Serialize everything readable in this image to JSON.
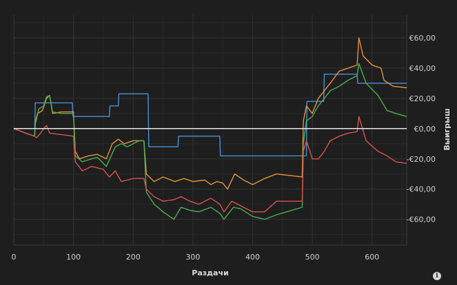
{
  "chart_data": {
    "type": "line",
    "title": "",
    "xlabel": "Раздачи",
    "ylabel": "Выигрыш",
    "xlim": [
      0,
      658
    ],
    "ylim": [
      -77,
      75
    ],
    "x_ticks": [
      0,
      100,
      200,
      300,
      400,
      500,
      600
    ],
    "y_ticks": [
      60,
      40,
      20,
      0,
      -20,
      -40,
      -60
    ],
    "y_tick_labels": [
      "€60,00",
      "€40,00",
      "€20,00",
      "€0,00",
      "-€20,00",
      "-€40,00",
      "-€60,00"
    ],
    "grid": true,
    "legend": "none",
    "zero_line": true,
    "series": [
      {
        "color": "#4a90d9",
        "points": [
          [
            0,
            0
          ],
          [
            35,
            0
          ],
          [
            36,
            17
          ],
          [
            98,
            17
          ],
          [
            99,
            8
          ],
          [
            160,
            8
          ],
          [
            161,
            15
          ],
          [
            175,
            15
          ],
          [
            176,
            23
          ],
          [
            225,
            23
          ],
          [
            226,
            -12
          ],
          [
            275,
            -12
          ],
          [
            276,
            -5
          ],
          [
            345,
            -5
          ],
          [
            346,
            -18
          ],
          [
            490,
            -18
          ],
          [
            491,
            18
          ],
          [
            518,
            18
          ],
          [
            519,
            18
          ],
          [
            520,
            36
          ],
          [
            575,
            36
          ],
          [
            576,
            30
          ],
          [
            658,
            30
          ]
        ]
      },
      {
        "color": "#e8943a",
        "points": [
          [
            0,
            0
          ],
          [
            20,
            -3
          ],
          [
            35,
            -5
          ],
          [
            36,
            3
          ],
          [
            40,
            10
          ],
          [
            48,
            12
          ],
          [
            55,
            20
          ],
          [
            60,
            22
          ],
          [
            65,
            10
          ],
          [
            80,
            11
          ],
          [
            100,
            11
          ],
          [
            103,
            -15
          ],
          [
            110,
            -20
          ],
          [
            125,
            -18
          ],
          [
            140,
            -17
          ],
          [
            155,
            -20
          ],
          [
            165,
            -10
          ],
          [
            175,
            -7
          ],
          [
            185,
            -10
          ],
          [
            200,
            -8
          ],
          [
            218,
            -8
          ],
          [
            222,
            -30
          ],
          [
            235,
            -35
          ],
          [
            250,
            -32
          ],
          [
            270,
            -35
          ],
          [
            285,
            -33
          ],
          [
            300,
            -35
          ],
          [
            320,
            -34
          ],
          [
            330,
            -37
          ],
          [
            340,
            -35
          ],
          [
            350,
            -36
          ],
          [
            358,
            -40
          ],
          [
            370,
            -30
          ],
          [
            385,
            -34
          ],
          [
            400,
            -37
          ],
          [
            420,
            -33
          ],
          [
            440,
            -30
          ],
          [
            483,
            -32
          ],
          [
            485,
            5
          ],
          [
            490,
            15
          ],
          [
            500,
            10
          ],
          [
            510,
            20
          ],
          [
            520,
            25
          ],
          [
            530,
            30
          ],
          [
            545,
            38
          ],
          [
            560,
            40
          ],
          [
            575,
            42
          ],
          [
            578,
            60
          ],
          [
            585,
            48
          ],
          [
            600,
            42
          ],
          [
            615,
            40
          ],
          [
            620,
            32
          ],
          [
            635,
            28
          ],
          [
            658,
            27
          ]
        ]
      },
      {
        "color": "#4caf50",
        "points": [
          [
            0,
            0
          ],
          [
            20,
            -3
          ],
          [
            35,
            -5
          ],
          [
            36,
            5
          ],
          [
            42,
            13
          ],
          [
            50,
            15
          ],
          [
            55,
            21
          ],
          [
            60,
            22
          ],
          [
            65,
            11
          ],
          [
            80,
            10
          ],
          [
            100,
            10
          ],
          [
            103,
            -18
          ],
          [
            115,
            -22
          ],
          [
            130,
            -20
          ],
          [
            140,
            -19
          ],
          [
            155,
            -25
          ],
          [
            170,
            -12
          ],
          [
            180,
            -10
          ],
          [
            190,
            -12
          ],
          [
            210,
            -8
          ],
          [
            218,
            -8
          ],
          [
            222,
            -42
          ],
          [
            235,
            -50
          ],
          [
            250,
            -55
          ],
          [
            268,
            -60
          ],
          [
            280,
            -52
          ],
          [
            295,
            -54
          ],
          [
            310,
            -55
          ],
          [
            330,
            -52
          ],
          [
            345,
            -56
          ],
          [
            352,
            -60
          ],
          [
            368,
            -52
          ],
          [
            380,
            -53
          ],
          [
            400,
            -58
          ],
          [
            420,
            -60
          ],
          [
            440,
            -57
          ],
          [
            483,
            -52
          ],
          [
            485,
            -10
          ],
          [
            490,
            5
          ],
          [
            500,
            8
          ],
          [
            510,
            15
          ],
          [
            520,
            20
          ],
          [
            530,
            25
          ],
          [
            545,
            28
          ],
          [
            560,
            32
          ],
          [
            575,
            35
          ],
          [
            578,
            43
          ],
          [
            590,
            30
          ],
          [
            610,
            22
          ],
          [
            625,
            12
          ],
          [
            640,
            10
          ],
          [
            658,
            8
          ]
        ]
      },
      {
        "color": "#d9534f",
        "points": [
          [
            0,
            0
          ],
          [
            20,
            -3
          ],
          [
            35,
            -5
          ],
          [
            38,
            -6
          ],
          [
            45,
            -3
          ],
          [
            50,
            0
          ],
          [
            55,
            2
          ],
          [
            60,
            -3
          ],
          [
            80,
            -4
          ],
          [
            100,
            -5
          ],
          [
            103,
            -22
          ],
          [
            115,
            -28
          ],
          [
            130,
            -25
          ],
          [
            150,
            -27
          ],
          [
            160,
            -32
          ],
          [
            170,
            -28
          ],
          [
            180,
            -35
          ],
          [
            200,
            -33
          ],
          [
            218,
            -33
          ],
          [
            222,
            -40
          ],
          [
            235,
            -45
          ],
          [
            250,
            -48
          ],
          [
            268,
            -47
          ],
          [
            280,
            -45
          ],
          [
            295,
            -48
          ],
          [
            310,
            -50
          ],
          [
            330,
            -46
          ],
          [
            345,
            -50
          ],
          [
            352,
            -55
          ],
          [
            365,
            -48
          ],
          [
            385,
            -52
          ],
          [
            400,
            -55
          ],
          [
            420,
            -55
          ],
          [
            440,
            -48
          ],
          [
            483,
            -48
          ],
          [
            485,
            -15
          ],
          [
            490,
            -8
          ],
          [
            500,
            -20
          ],
          [
            510,
            -20
          ],
          [
            520,
            -15
          ],
          [
            530,
            -8
          ],
          [
            545,
            -5
          ],
          [
            560,
            -3
          ],
          [
            575,
            -2
          ],
          [
            578,
            8
          ],
          [
            590,
            -8
          ],
          [
            610,
            -15
          ],
          [
            625,
            -18
          ],
          [
            640,
            -22
          ],
          [
            658,
            -23
          ]
        ]
      }
    ]
  },
  "ui": {
    "info_icon_glyph": "i"
  }
}
